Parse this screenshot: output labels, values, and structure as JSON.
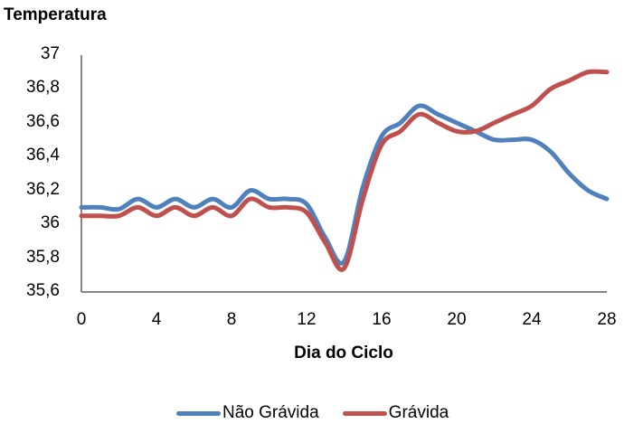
{
  "chart_data": {
    "type": "line",
    "title": "",
    "ylabel": "Temperatura",
    "xlabel": "Dia do Ciclo",
    "ylim": [
      35.6,
      37
    ],
    "xlim": [
      0,
      28
    ],
    "y_ticks": [
      "37",
      "36,8",
      "36,6",
      "36,4",
      "36,2",
      "36",
      "35,8",
      "35,6"
    ],
    "x_ticks": [
      "0",
      "4",
      "8",
      "12",
      "16",
      "20",
      "24",
      "28"
    ],
    "grid": false,
    "legend_position": "bottom",
    "x": [
      0,
      1,
      2,
      3,
      4,
      5,
      6,
      7,
      8,
      9,
      10,
      11,
      12,
      13,
      14,
      15,
      16,
      17,
      18,
      19,
      20,
      21,
      22,
      23,
      24,
      25,
      26,
      27,
      28
    ],
    "series": [
      {
        "name": "Não Grávida",
        "color": "#4F81BD",
        "values": [
          36.1,
          36.1,
          36.09,
          36.15,
          36.1,
          36.15,
          36.1,
          36.15,
          36.1,
          36.2,
          36.15,
          36.15,
          36.12,
          35.92,
          35.78,
          36.22,
          36.52,
          36.6,
          36.7,
          36.65,
          36.6,
          36.55,
          36.5,
          36.5,
          36.5,
          36.43,
          36.3,
          36.2,
          36.15
        ]
      },
      {
        "name": "Grávida",
        "color": "#C0504D",
        "values": [
          36.05,
          36.05,
          36.05,
          36.1,
          36.05,
          36.1,
          36.05,
          36.1,
          36.05,
          36.15,
          36.1,
          36.1,
          36.07,
          35.89,
          35.74,
          36.15,
          36.47,
          36.55,
          36.65,
          36.6,
          36.55,
          36.55,
          36.6,
          36.65,
          36.7,
          36.8,
          36.85,
          36.9,
          36.9
        ]
      }
    ]
  },
  "axes": {
    "ylabel": "Temperatura",
    "xlabel": "Dia do Ciclo"
  },
  "legend": {
    "items": [
      {
        "label": "Não Grávida",
        "color": "#4F81BD"
      },
      {
        "label": "Grávida",
        "color": "#C0504D"
      }
    ]
  }
}
